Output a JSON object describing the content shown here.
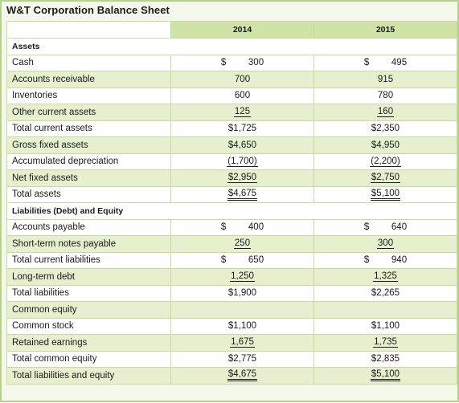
{
  "title": "W&T Corporation Balance Sheet",
  "columns": [
    "",
    "2014",
    "2015"
  ],
  "rows": [
    {
      "type": "section",
      "label": "Assets"
    },
    {
      "label": "Cash",
      "v2014": "300",
      "v2015": "495",
      "dollar": true
    },
    {
      "label": "Accounts receivable",
      "v2014": "700",
      "v2015": "915"
    },
    {
      "label": "Inventories",
      "v2014": "600",
      "v2015": "780"
    },
    {
      "label": "Other current assets",
      "v2014": "125",
      "v2015": "160",
      "underline": "single"
    },
    {
      "label": "Total current assets",
      "v2014": "$1,725",
      "v2015": "$2,350"
    },
    {
      "label": "Gross fixed assets",
      "v2014": "$4,650",
      "v2015": "$4,950"
    },
    {
      "label": "Accumulated depreciation",
      "v2014": "(1,700)",
      "v2015": "(2,200)",
      "underline": "single"
    },
    {
      "label": "Net fixed assets",
      "v2014": "$2,950",
      "v2015": "$2,750",
      "underline": "single"
    },
    {
      "label": "Total assets",
      "v2014": "$4,675",
      "v2015": "$5,100",
      "underline": "double"
    },
    {
      "type": "section",
      "label": "Liabilities (Debt) and Equity"
    },
    {
      "label": "Accounts payable",
      "v2014": "400",
      "v2015": "640",
      "dollar": true
    },
    {
      "label": "Short-term notes payable",
      "v2014": "250",
      "v2015": "300",
      "underline": "single"
    },
    {
      "label": "Total current liabilities",
      "v2014": "650",
      "v2015": "940",
      "dollar": true
    },
    {
      "label": "Long-term debt",
      "v2014": "1,250",
      "v2015": "1,325",
      "underline": "single"
    },
    {
      "label": "Total liabilities",
      "v2014": "$1,900",
      "v2015": "$2,265"
    },
    {
      "label": "Common equity",
      "v2014": "",
      "v2015": ""
    },
    {
      "label": "Common stock",
      "v2014": "$1,100",
      "v2015": "$1,100"
    },
    {
      "label": "Retained earnings",
      "v2014": "1,675",
      "v2015": "1,735",
      "underline": "single"
    },
    {
      "label": "Total common equity",
      "v2014": "$2,775",
      "v2015": "$2,835"
    },
    {
      "label": "Total liabilities and equity",
      "v2014": "$4,675",
      "v2015": "$5,100",
      "underline": "double"
    }
  ],
  "colors": {
    "header_band": "#cfe3a6",
    "row_band": "#e6f0cf",
    "border": "#c6d9a0"
  }
}
